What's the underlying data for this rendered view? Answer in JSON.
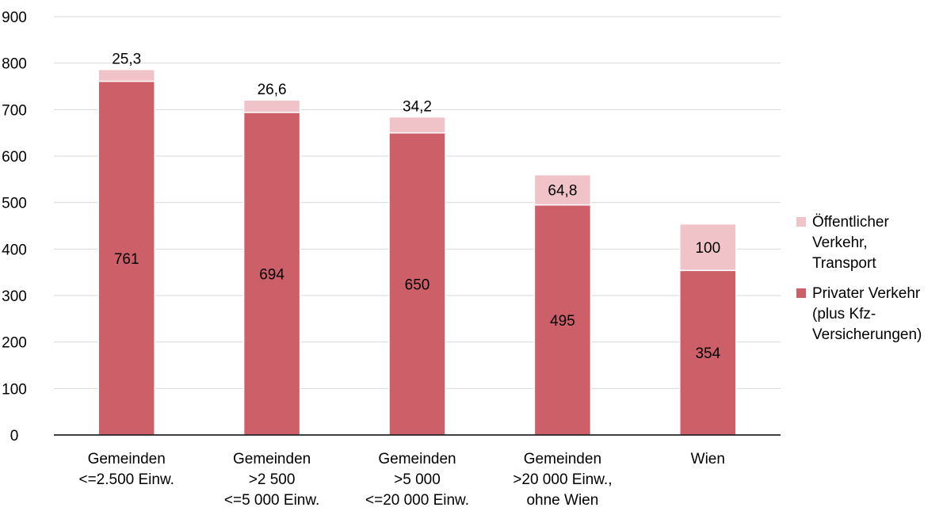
{
  "chart_data": {
    "type": "bar",
    "stacked": true,
    "categories": [
      "Gemeinden\n<=2.500 Einw.",
      "Gemeinden\n>2 500\n<=5 000 Einw.",
      "Gemeinden\n>5 000\n<=20 000 Einw.",
      "Gemeinden\n>20 000 Einw.,\nohne Wien",
      "Wien"
    ],
    "series": [
      {
        "name": "Privater Verkehr\n(plus Kfz-\nVersicherungen)",
        "values": [
          761,
          694,
          650,
          495,
          354
        ],
        "labels": [
          "761",
          "694",
          "650",
          "495",
          "354"
        ],
        "color": "#cd5f69"
      },
      {
        "name": "Öffentlicher\nVerkehr,\nTransport",
        "values": [
          25.3,
          26.6,
          34.2,
          64.8,
          100
        ],
        "labels": [
          "25,3",
          "26,6",
          "34,2",
          "64,8",
          "100"
        ],
        "color": "#f0c3c8"
      }
    ],
    "ylim": [
      0,
      900
    ],
    "yticks": [
      0,
      100,
      200,
      300,
      400,
      500,
      600,
      700,
      800,
      900
    ],
    "grid": true,
    "legend_position": "right"
  }
}
